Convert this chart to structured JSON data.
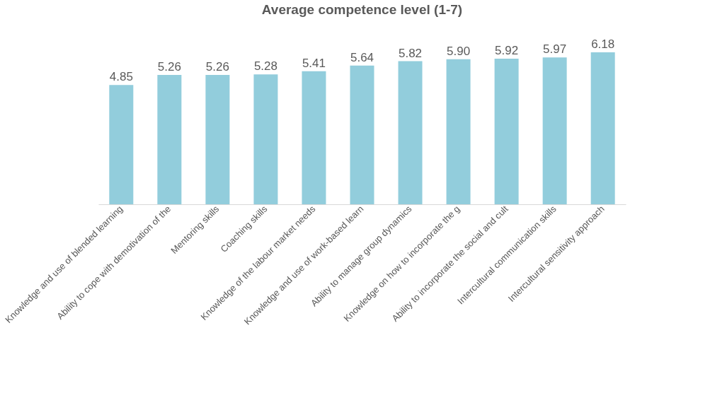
{
  "chart_data": {
    "type": "bar",
    "title": "Average competence level (1-7)",
    "categories": [
      "Knowledge and use of blended learning",
      "Ability to cope with demotivation of the",
      "Mentoring skills",
      "Coaching skills",
      "Knowledge of the labour market needs",
      "Knowledge and use of work-based learn",
      "Ability to manage group dynamics",
      "Knowledge on how to incorporate the g",
      "Ability to incorporate the social and cult",
      "Intercultural communication skills",
      "Intercultural sensitivity approach"
    ],
    "values": [
      4.85,
      5.26,
      5.26,
      5.28,
      5.41,
      5.64,
      5.82,
      5.9,
      5.92,
      5.97,
      6.18
    ],
    "value_labels": [
      "4.85",
      "5.26",
      "5.26",
      "5.28",
      "5.41",
      "5.64",
      "5.82",
      "5.90",
      "5.92",
      "5.97",
      "6.18"
    ],
    "color": "#92cddc",
    "grid": false,
    "tick_labels": "x"
  }
}
